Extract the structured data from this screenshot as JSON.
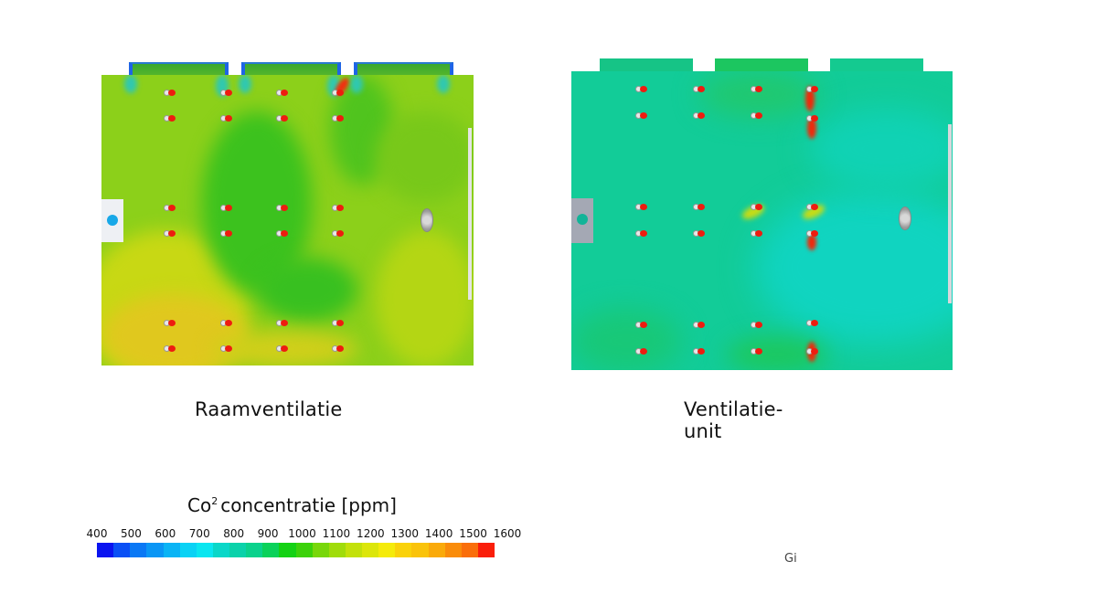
{
  "chart_data": {
    "type": "heatmap",
    "title": "Co2 concentratie [ppm]",
    "colorbar": {
      "label": "Co2 concentratie [ppm]",
      "min": 400,
      "max": 1600,
      "ticks": [
        400,
        500,
        600,
        700,
        800,
        900,
        1000,
        1100,
        1200,
        1300,
        1400,
        1500,
        1600
      ],
      "colors": [
        "#0a14f0",
        "#0a50f5",
        "#0a78f5",
        "#0a96f5",
        "#0ab4f5",
        "#0ad2f5",
        "#0ae6f0",
        "#0ad7c8",
        "#0ad2aa",
        "#0ad28c",
        "#0ad25a",
        "#14d214",
        "#3cd20a",
        "#78d70a",
        "#a0dc0a",
        "#c3e10a",
        "#dce60a",
        "#f5eb0a",
        "#fad20a",
        "#fac30a",
        "#faaa0a",
        "#fa8c0a",
        "#fa6e0a",
        "#fa1e0a"
      ]
    },
    "panels": [
      {
        "name": "Raamventilatie",
        "dominant_range_ppm": [
          1050,
          1350
        ],
        "description": "Overall yellow-green (approx. 1050–1350 ppm); greener zones near windows and center, yellow/orange along bottom-left",
        "hotspots_near_occupants": true
      },
      {
        "name": "Ventilatie-unit",
        "dominant_range_ppm": [
          750,
          950
        ],
        "description": "Overall cyan-green (approx. 750–950 ppm); localized red plumes at occupant positions",
        "hotspots_near_occupants": true
      }
    ]
  },
  "panels": {
    "left": {
      "caption": "Raamventilatie"
    },
    "right": {
      "caption": "Ventilatie-unit"
    }
  },
  "legend": {
    "title_main": "Co",
    "title_sup": "2",
    "title_rest": "concentratie [ppm]",
    "ticks": [
      "400",
      "500",
      "600",
      "700",
      "800",
      "900",
      "1000",
      "1100",
      "1200",
      "1300",
      "1400",
      "1500",
      "1600"
    ]
  },
  "stray_text": "Gi"
}
